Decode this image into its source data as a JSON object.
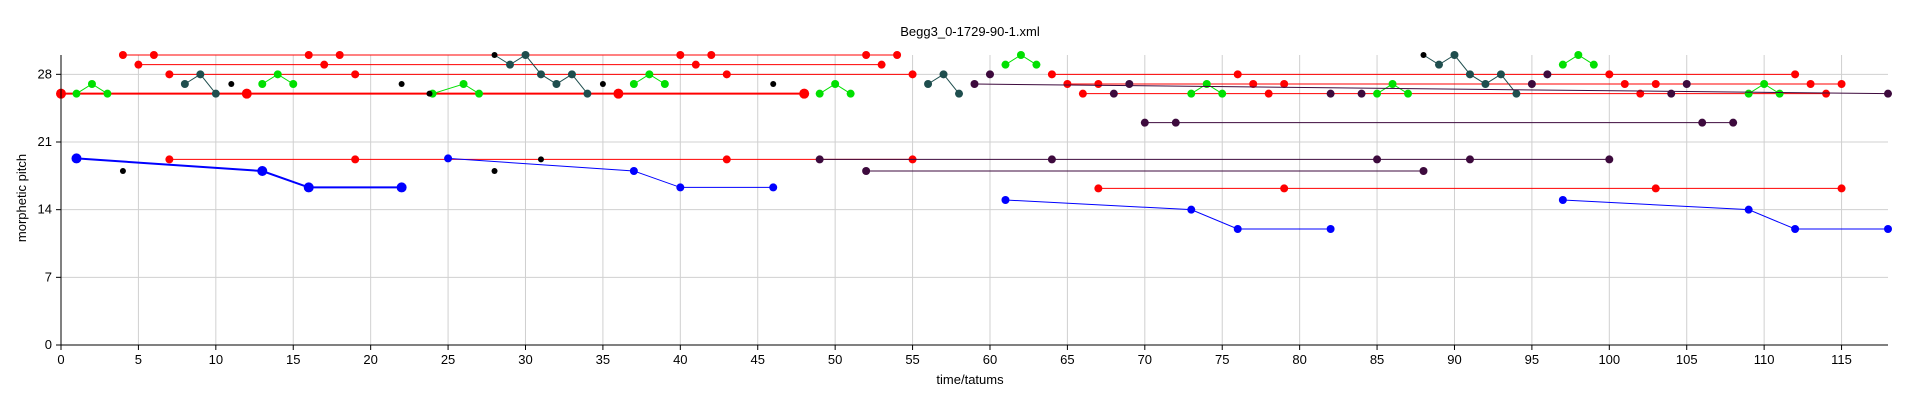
{
  "chart_data": {
    "type": "scatter",
    "title": "Begg3_0-1729-90-1.xml",
    "xlabel": "time/tatums",
    "ylabel": "morphetic pitch",
    "xlim": [
      0,
      118
    ],
    "ylim": [
      0,
      30
    ],
    "xticks": [
      0,
      5,
      10,
      15,
      20,
      25,
      30,
      35,
      40,
      45,
      50,
      55,
      60,
      65,
      70,
      75,
      80,
      85,
      90,
      95,
      100,
      105,
      110,
      115
    ],
    "yticks": [
      0,
      7,
      14,
      21,
      28
    ],
    "grid": true,
    "colors": {
      "red": "#ff0000",
      "green": "#00e000",
      "blue": "#0000ff",
      "black": "#000000",
      "teal": "#1f4e4e",
      "purple": "#3d0a3d"
    },
    "sets": [
      {
        "color": "red",
        "width": 1,
        "r": 4,
        "lines": [
          [
            [
              4,
              30
            ],
            [
              54,
              30
            ]
          ],
          [
            [
              5,
              29
            ],
            [
              53,
              29
            ]
          ],
          [
            [
              7,
              28
            ],
            [
              55,
              28
            ]
          ]
        ],
        "points": [
          [
            4,
            30
          ],
          [
            6,
            30
          ],
          [
            16,
            30
          ],
          [
            18,
            30
          ],
          [
            40,
            30
          ],
          [
            42,
            30
          ],
          [
            52,
            30
          ],
          [
            54,
            30
          ],
          [
            5,
            29
          ],
          [
            17,
            29
          ],
          [
            41,
            29
          ],
          [
            53,
            29
          ],
          [
            7,
            28
          ],
          [
            19,
            28
          ],
          [
            43,
            28
          ],
          [
            55,
            28
          ]
        ]
      },
      {
        "color": "red",
        "width": 2,
        "r": 5,
        "lines": [
          [
            [
              0,
              26
            ],
            [
              48,
              26
            ]
          ]
        ],
        "points": [
          [
            0,
            26
          ],
          [
            12,
            26
          ],
          [
            36,
            26
          ],
          [
            48,
            26
          ]
        ]
      },
      {
        "color": "red",
        "width": 1,
        "r": 4,
        "lines": [
          [
            [
              7,
              19.2
            ],
            [
              55,
              19.2
            ]
          ]
        ],
        "points": [
          [
            7,
            19.2
          ],
          [
            19,
            19.2
          ],
          [
            43,
            19.2
          ],
          [
            55,
            19.2
          ]
        ]
      },
      {
        "color": "red",
        "width": 1,
        "r": 4,
        "lines": [
          [
            [
              64,
              28
            ],
            [
              112,
              28
            ]
          ],
          [
            [
              65,
              27
            ],
            [
              115,
              27
            ]
          ],
          [
            [
              66,
              26
            ],
            [
              114,
              26
            ]
          ],
          [
            [
              67,
              16.2
            ],
            [
              115,
              16.2
            ]
          ]
        ],
        "points": [
          [
            64,
            28
          ],
          [
            76,
            28
          ],
          [
            100,
            28
          ],
          [
            112,
            28
          ],
          [
            65,
            27
          ],
          [
            67,
            27
          ],
          [
            77,
            27
          ],
          [
            79,
            27
          ],
          [
            101,
            27
          ],
          [
            103,
            27
          ],
          [
            113,
            27
          ],
          [
            115,
            27
          ],
          [
            66,
            26
          ],
          [
            78,
            26
          ],
          [
            102,
            26
          ],
          [
            114,
            26
          ],
          [
            67,
            16.2
          ],
          [
            79,
            16.2
          ],
          [
            103,
            16.2
          ],
          [
            115,
            16.2
          ]
        ]
      },
      {
        "color": "green",
        "width": 1,
        "r": 4,
        "lines": [
          [
            [
              1,
              26
            ],
            [
              2,
              27
            ],
            [
              3,
              26
            ]
          ],
          [
            [
              13,
              27
            ],
            [
              14,
              28
            ],
            [
              15,
              27
            ]
          ],
          [
            [
              24,
              26
            ],
            [
              26,
              27
            ],
            [
              27,
              26
            ]
          ],
          [
            [
              37,
              27
            ],
            [
              38,
              28
            ],
            [
              39,
              27
            ]
          ],
          [
            [
              49,
              26
            ],
            [
              50,
              27
            ],
            [
              51,
              26
            ]
          ],
          [
            [
              61,
              29
            ],
            [
              62,
              30
            ],
            [
              63,
              29
            ]
          ],
          [
            [
              73,
              26
            ],
            [
              74,
              27
            ],
            [
              75,
              26
            ]
          ],
          [
            [
              85,
              26
            ],
            [
              86,
              27
            ],
            [
              87,
              26
            ]
          ],
          [
            [
              97,
              29
            ],
            [
              98,
              30
            ],
            [
              99,
              29
            ]
          ],
          [
            [
              109,
              26
            ],
            [
              110,
              27
            ],
            [
              111,
              26
            ]
          ]
        ],
        "points": [
          [
            1,
            26
          ],
          [
            2,
            27
          ],
          [
            3,
            26
          ],
          [
            13,
            27
          ],
          [
            14,
            28
          ],
          [
            15,
            27
          ],
          [
            24,
            26
          ],
          [
            26,
            27
          ],
          [
            27,
            26
          ],
          [
            37,
            27
          ],
          [
            38,
            28
          ],
          [
            39,
            27
          ],
          [
            49,
            26
          ],
          [
            50,
            27
          ],
          [
            51,
            26
          ],
          [
            61,
            29
          ],
          [
            62,
            30
          ],
          [
            63,
            29
          ],
          [
            73,
            26
          ],
          [
            74,
            27
          ],
          [
            75,
            26
          ],
          [
            85,
            26
          ],
          [
            86,
            27
          ],
          [
            87,
            26
          ],
          [
            97,
            29
          ],
          [
            98,
            30
          ],
          [
            99,
            29
          ],
          [
            109,
            26
          ],
          [
            110,
            27
          ],
          [
            111,
            26
          ]
        ]
      },
      {
        "color": "teal",
        "width": 1,
        "r": 4,
        "lines": [
          [
            [
              8,
              27
            ],
            [
              9,
              28
            ],
            [
              10,
              26
            ]
          ],
          [
            [
              28,
              30
            ],
            [
              29,
              29
            ],
            [
              30,
              30
            ],
            [
              31,
              28
            ],
            [
              32,
              27
            ],
            [
              33,
              28
            ],
            [
              34,
              26
            ]
          ],
          [
            [
              56,
              27
            ],
            [
              57,
              28
            ],
            [
              58,
              26
            ]
          ],
          [
            [
              88,
              30
            ],
            [
              89,
              29
            ],
            [
              90,
              30
            ],
            [
              91,
              28
            ],
            [
              92,
              27
            ],
            [
              93,
              28
            ],
            [
              94,
              26
            ]
          ]
        ],
        "points": [
          [
            8,
            27
          ],
          [
            9,
            28
          ],
          [
            10,
            26
          ],
          [
            29,
            29
          ],
          [
            30,
            30
          ],
          [
            31,
            28
          ],
          [
            32,
            27
          ],
          [
            33,
            28
          ],
          [
            34,
            26
          ],
          [
            56,
            27
          ],
          [
            57,
            28
          ],
          [
            58,
            26
          ],
          [
            89,
            29
          ],
          [
            90,
            30
          ],
          [
            91,
            28
          ],
          [
            92,
            27
          ],
          [
            93,
            28
          ],
          [
            94,
            26
          ]
        ]
      },
      {
        "color": "black",
        "width": 1,
        "r": 3,
        "lines": [],
        "points": [
          [
            4,
            18
          ],
          [
            11,
            27
          ],
          [
            22,
            27
          ],
          [
            23.8,
            26
          ],
          [
            28,
            18
          ],
          [
            28,
            30
          ],
          [
            31,
            19.2
          ],
          [
            35,
            27
          ],
          [
            46,
            27
          ],
          [
            88,
            30
          ]
        ]
      },
      {
        "color": "purple",
        "width": 1,
        "r": 4,
        "lines": [
          [
            [
              59,
              27
            ],
            [
              118,
              26
            ]
          ],
          [
            [
              52,
              18
            ],
            [
              88,
              18
            ]
          ],
          [
            [
              49,
              19.2
            ],
            [
              100,
              19.2
            ]
          ],
          [
            [
              70,
              23
            ],
            [
              108,
              23
            ]
          ]
        ],
        "points": [
          [
            59,
            27
          ],
          [
            60,
            28
          ],
          [
            68,
            26
          ],
          [
            69,
            27
          ],
          [
            82,
            26
          ],
          [
            84,
            26
          ],
          [
            95,
            27
          ],
          [
            96,
            28
          ],
          [
            104,
            26
          ],
          [
            105,
            27
          ],
          [
            118,
            26
          ],
          [
            52,
            18
          ],
          [
            88,
            18
          ],
          [
            49,
            19.2
          ],
          [
            64,
            19.2
          ],
          [
            85,
            19.2
          ],
          [
            91,
            19.2
          ],
          [
            100,
            19.2
          ],
          [
            70,
            23
          ],
          [
            72,
            23
          ],
          [
            106,
            23
          ],
          [
            108,
            23
          ]
        ]
      },
      {
        "color": "blue",
        "width": 2,
        "r": 5,
        "lines": [
          [
            [
              1,
              19.3
            ],
            [
              13,
              18
            ],
            [
              16,
              16.3
            ],
            [
              22,
              16.3
            ]
          ]
        ],
        "points": [
          [
            1,
            19.3
          ],
          [
            13,
            18
          ],
          [
            16,
            16.3
          ],
          [
            22,
            16.3
          ]
        ]
      },
      {
        "color": "blue",
        "width": 1,
        "r": 4,
        "lines": [
          [
            [
              25,
              19.3
            ],
            [
              37,
              18
            ],
            [
              40,
              16.3
            ],
            [
              46,
              16.3
            ]
          ],
          [
            [
              61,
              15
            ],
            [
              73,
              14
            ],
            [
              76,
              12
            ],
            [
              82,
              12
            ]
          ],
          [
            [
              97,
              15
            ],
            [
              109,
              14
            ],
            [
              112,
              12
            ],
            [
              118,
              12
            ]
          ]
        ],
        "points": [
          [
            25,
            19.3
          ],
          [
            37,
            18
          ],
          [
            40,
            16.3
          ],
          [
            46,
            16.3
          ],
          [
            61,
            15
          ],
          [
            73,
            14
          ],
          [
            76,
            12
          ],
          [
            82,
            12
          ],
          [
            97,
            15
          ],
          [
            109,
            14
          ],
          [
            112,
            12
          ],
          [
            118,
            12
          ]
        ]
      }
    ]
  }
}
